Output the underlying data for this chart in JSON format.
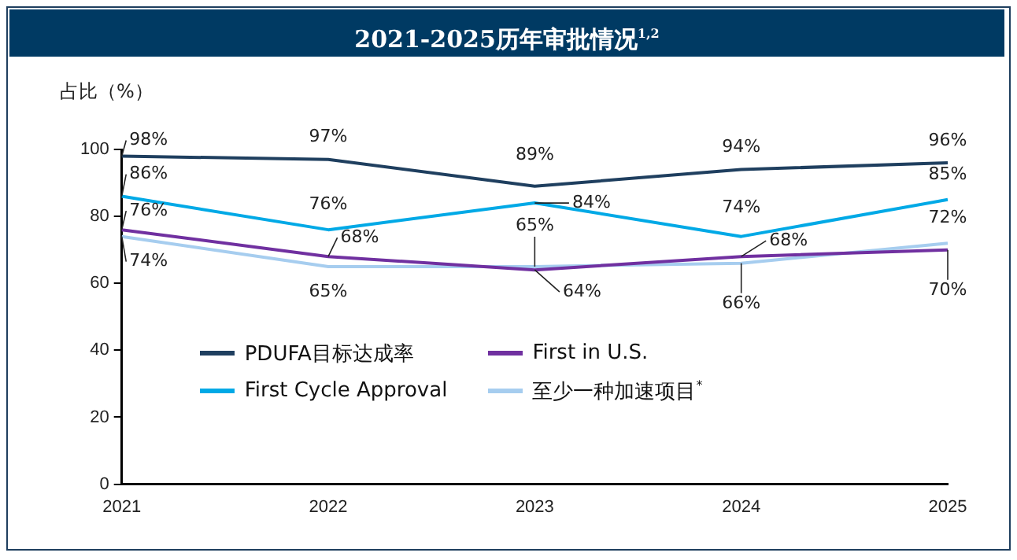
{
  "chart_data": {
    "type": "line",
    "title": "2021-2025历年审批情况$^{1,2}$",
    "ylabel": "占比（%）",
    "categories": [
      "2021",
      "2022",
      "2023",
      "2024",
      "2025"
    ],
    "series": [
      {
        "name": "PDUFA目标达成率",
        "color": "#1f3f5f",
        "values": [
          98,
          97,
          89,
          94,
          96
        ],
        "value_labels": [
          "98%",
          "97%",
          "89%",
          "94%",
          "96%"
        ]
      },
      {
        "name": "First Cycle Approval",
        "color": "#00a9e6",
        "values": [
          86,
          76,
          84,
          74,
          85
        ],
        "value_labels": [
          "86%",
          "76%",
          "84%",
          "74%",
          "85%"
        ]
      },
      {
        "name": "First in U.S.",
        "color": "#7030a0",
        "values": [
          76,
          68,
          64,
          68,
          70
        ],
        "value_labels": [
          "76%",
          "68%",
          "64%",
          "68%",
          "70%"
        ]
      },
      {
        "name": "至少一种加速项目$^{*}$",
        "color": "#a6cdef",
        "values": [
          74,
          65,
          65,
          66,
          72
        ],
        "value_labels": [
          "74%",
          "65%",
          "65%",
          "66%",
          "72%"
        ]
      }
    ],
    "ylim": [
      0,
      100
    ],
    "yticks": [
      0,
      20,
      40,
      60,
      80,
      100
    ],
    "grid": false,
    "legend": "bottom left",
    "marker": "none",
    "line_style": "solid"
  }
}
